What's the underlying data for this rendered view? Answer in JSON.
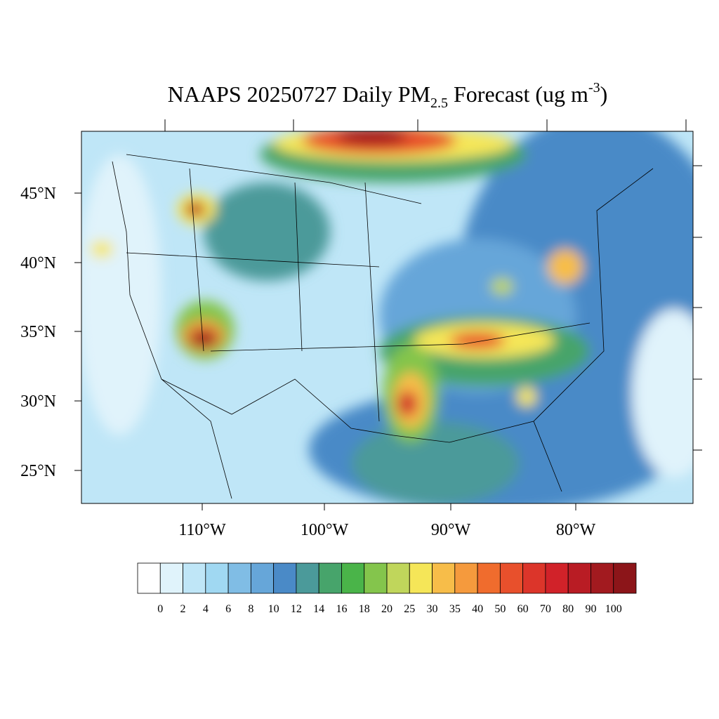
{
  "title": {
    "main": "NAAPS 20250727 Daily PM",
    "subscript": "2.5",
    "middle": " Forecast (ug m",
    "superscript": "-3",
    "end": ")"
  },
  "lat_labels": [
    "45°N",
    "40°N",
    "35°N",
    "30°N",
    "25°N"
  ],
  "lon_labels": [
    "110°W",
    "100°W",
    "90°W",
    "80°W"
  ],
  "colorbar": {
    "levels": [
      0,
      2,
      4,
      6,
      8,
      10,
      12,
      14,
      16,
      18,
      20,
      25,
      30,
      35,
      40,
      50,
      60,
      70,
      80,
      90,
      100
    ],
    "colors": [
      "#ffffff",
      "#e0f3fb",
      "#bfe6f7",
      "#a0d8f2",
      "#80bde5",
      "#66a6d9",
      "#4a8ac7",
      "#4b9a9a",
      "#47a46b",
      "#4ab449",
      "#84c54c",
      "#c0d65b",
      "#f5e658",
      "#f7bd49",
      "#f59a3d",
      "#f06c2d",
      "#e8502c",
      "#dc352a",
      "#d12229",
      "#b91c24",
      "#a21a1f",
      "#8c1519"
    ]
  }
}
